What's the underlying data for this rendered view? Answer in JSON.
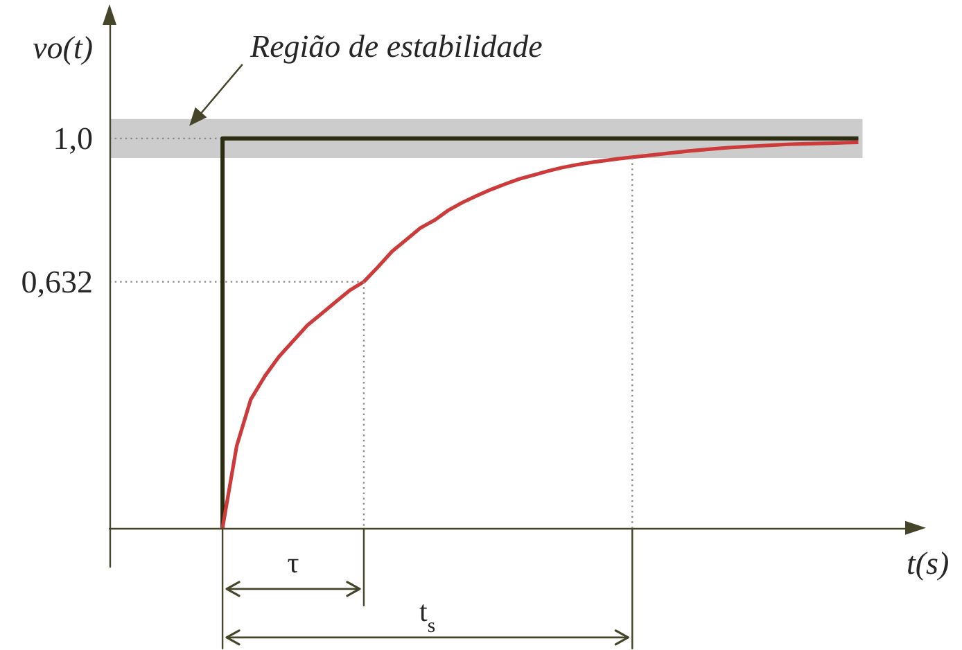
{
  "chart_data": {
    "type": "line",
    "xlabel": "t(s)",
    "ylabel": "vo(t)",
    "categories": [
      null,
      null,
      null,
      null,
      null,
      null,
      null,
      null,
      null,
      null,
      null,
      null,
      null,
      null,
      null,
      null,
      null,
      null,
      null,
      null,
      null,
      null,
      null,
      null,
      null,
      null,
      null,
      null,
      null,
      null,
      null,
      null,
      null,
      null,
      null,
      null,
      null,
      null,
      null,
      null,
      null,
      null,
      null,
      null,
      null,
      null,
      null,
      null,
      null,
      null,
      null,
      null,
      null,
      null,
      null,
      null,
      null,
      null
    ],
    "ylim": [
      -0.1,
      1.32
    ],
    "yticks": [
      {
        "value": 0.632,
        "label": "0,632"
      },
      {
        "value": 1.0,
        "label": "1,0"
      }
    ],
    "tick_labels": "y",
    "marker": "none",
    "series": [
      {
        "type": "step",
        "color": "#2d2d12",
        "values": [
          null,
          null,
          null,
          null,
          null,
          null,
          null,
          null,
          0,
          1,
          1,
          1,
          1,
          1,
          1,
          1,
          1,
          1,
          1,
          1,
          1,
          1,
          1,
          1,
          1,
          1,
          1,
          1,
          1,
          1,
          1,
          1,
          1,
          1,
          1,
          1,
          1,
          1,
          1,
          1,
          1,
          1,
          1,
          1,
          1,
          1,
          1,
          1,
          1,
          1,
          1,
          1,
          1,
          1,
          null,
          null,
          null,
          null
        ]
      },
      {
        "color": "#cc3a3a",
        "values": [
          null,
          null,
          null,
          null,
          null,
          null,
          null,
          null,
          0,
          0.21,
          0.33,
          0.39,
          0.44,
          0.48,
          0.52,
          0.55,
          0.58,
          0.61,
          0.632,
          0.67,
          0.71,
          0.74,
          0.77,
          0.79,
          0.816,
          0.836,
          0.853,
          0.869,
          0.883,
          0.896,
          0.906,
          0.916,
          0.925,
          0.932,
          0.938,
          0.943,
          0.948,
          0.952,
          0.956,
          0.96,
          0.964,
          0.968,
          0.971,
          0.974,
          0.977,
          0.979,
          0.981,
          0.983,
          0.985,
          0.986,
          0.987,
          0.988,
          0.989,
          0.99,
          null,
          null,
          null,
          null
        ]
      }
    ],
    "bands": [
      {
        "axis": "y",
        "from": 0.95,
        "to": 1.05,
        "label": "Região de estabilidade",
        "color": "#cccccc"
      }
    ],
    "ref_lines": [
      {
        "axis": "y",
        "value": 0.632,
        "color": "#888888",
        "line_style": "dotted"
      },
      {
        "axis": "y",
        "value": 1.0,
        "color": "#888888",
        "line_style": "dotted"
      }
    ],
    "annotations": [
      "τ",
      "t$_{s}$"
    ]
  }
}
